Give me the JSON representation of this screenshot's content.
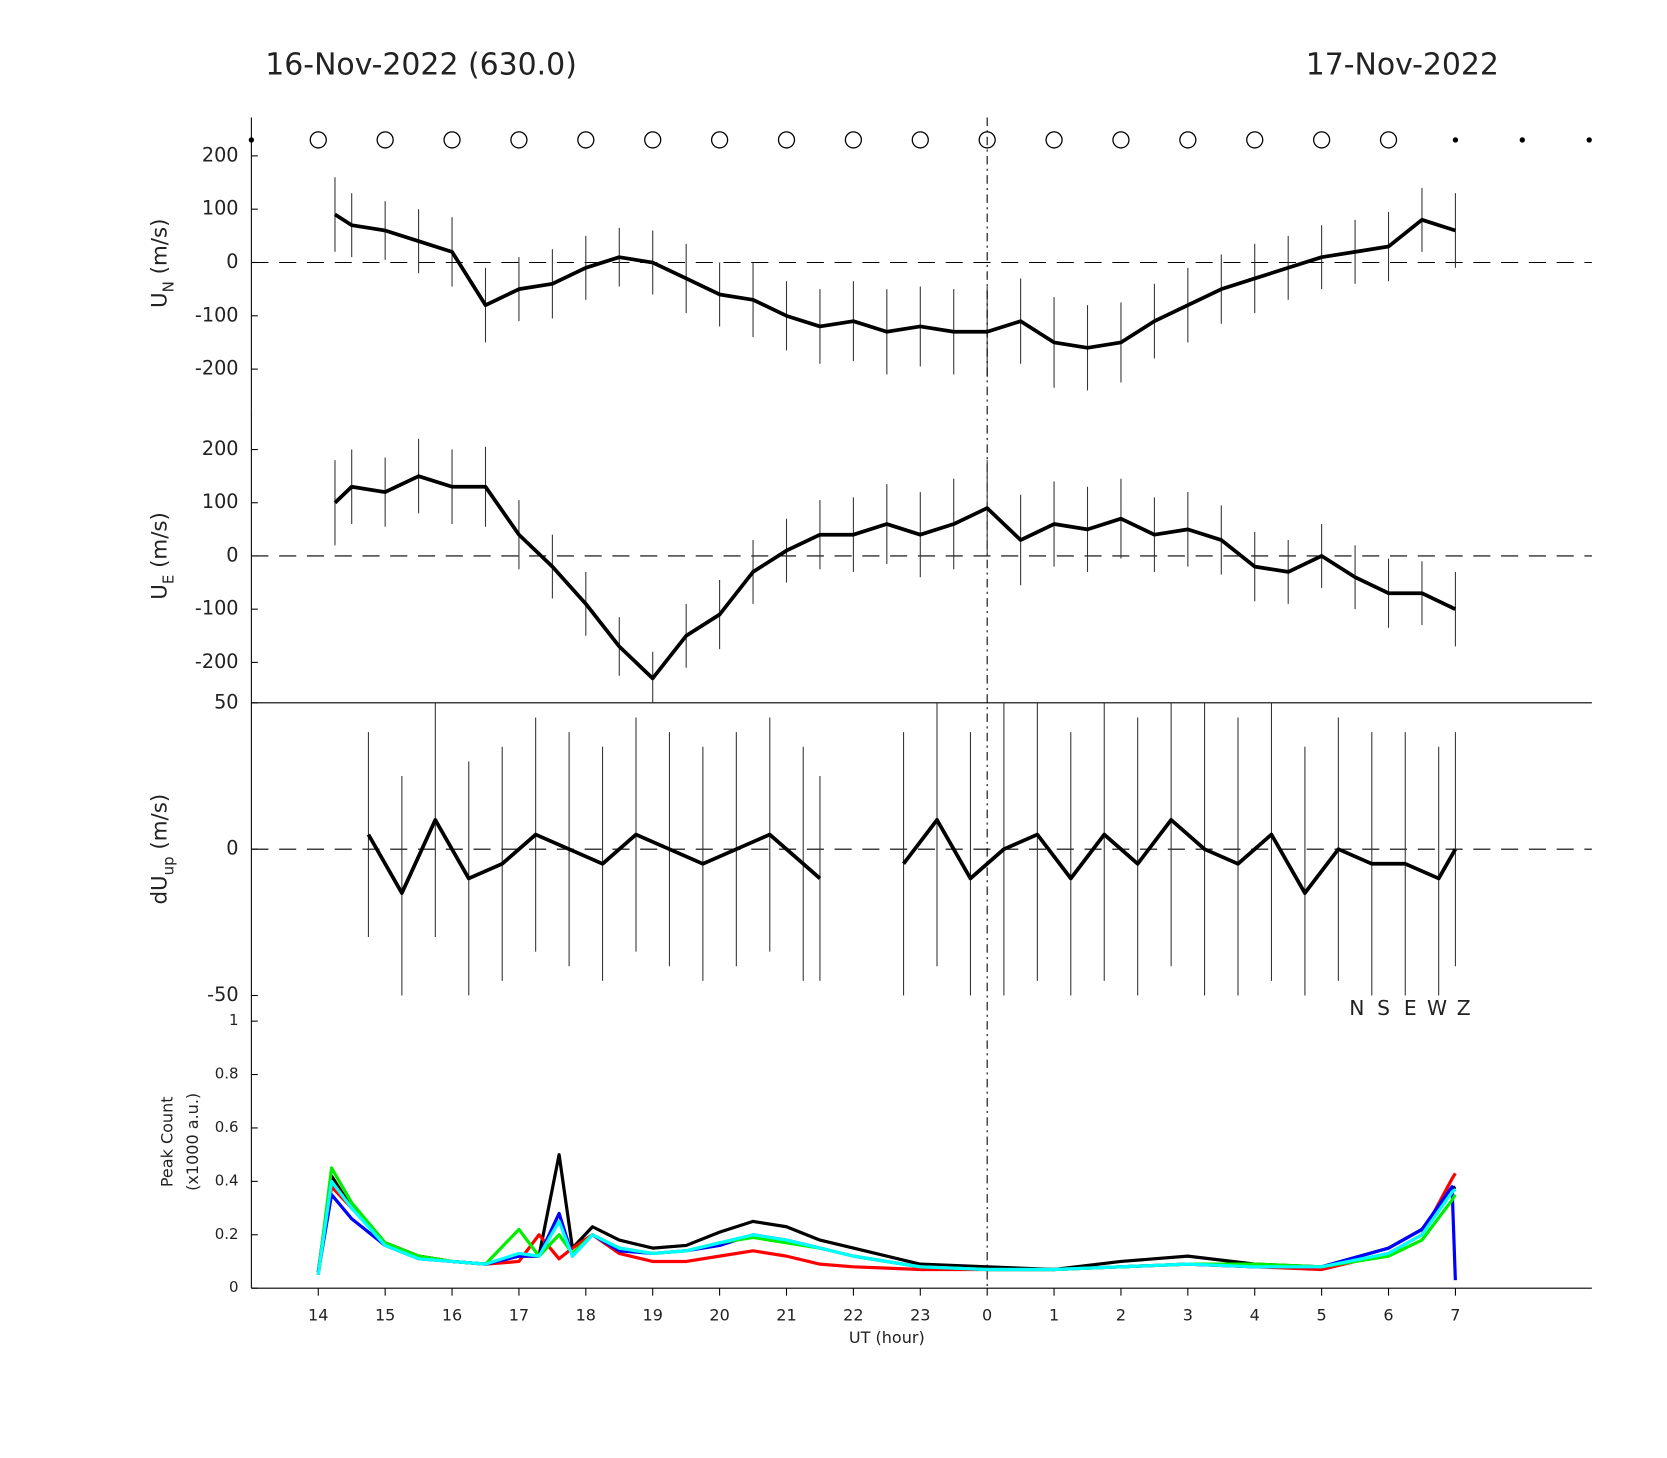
{
  "chart_data": [
    {
      "type": "line",
      "title_left": "16-Nov-2022 (630.0)",
      "title_right": "17-Nov-2022",
      "ylabel": {
        "main": "U",
        "sub": "N",
        "unit": "(m/s)"
      },
      "markers": {
        "x": [
          13,
          14,
          15,
          16,
          17,
          18,
          19,
          20,
          21,
          22,
          23,
          24,
          25,
          26,
          27,
          28,
          29,
          30,
          31,
          32,
          33
        ],
        "symbols": [
          "dot",
          "circle",
          "circle",
          "circle",
          "circle",
          "circle",
          "circle",
          "circle",
          "circle",
          "circle",
          "circle",
          "circle",
          "circle",
          "circle",
          "circle",
          "circle",
          "circle",
          "circle",
          "dot",
          "dot",
          "dot"
        ]
      },
      "midnight_line": 24,
      "xlim": [
        13,
        33.04
      ],
      "ylim": [
        -275,
        272
      ],
      "yticks": [
        -200,
        -100,
        0,
        100,
        200
      ],
      "ref_line": 0,
      "x": [
        14.25,
        14.5,
        15,
        15.5,
        16,
        16.5,
        17,
        17.5,
        18,
        18.5,
        19,
        19.5,
        20,
        20.5,
        21,
        21.5,
        22,
        22.5,
        23,
        23.5,
        24,
        24.5,
        25,
        25.5,
        26,
        26.5,
        27,
        27.5,
        28,
        28.5,
        29,
        29.5,
        30,
        30.5,
        31
      ],
      "series": [
        {
          "color": "#000000",
          "values": [
            90,
            70,
            60,
            40,
            20,
            -80,
            -50,
            -40,
            -10,
            10,
            0,
            -30,
            -60,
            -70,
            -100,
            -120,
            -110,
            -130,
            -120,
            -130,
            -130,
            -110,
            -150,
            -160,
            -150,
            -110,
            -80,
            -50,
            -30,
            -10,
            10,
            20,
            30,
            80,
            60
          ],
          "errors": [
            70,
            60,
            55,
            60,
            65,
            70,
            60,
            65,
            60,
            55,
            60,
            65,
            60,
            70,
            65,
            70,
            75,
            80,
            75,
            80,
            85,
            80,
            85,
            80,
            75,
            70,
            70,
            65,
            65,
            60,
            60,
            60,
            65,
            60,
            70
          ]
        }
      ]
    },
    {
      "type": "line",
      "ylabel": {
        "main": "U",
        "sub": "E",
        "unit": "(m/s)"
      },
      "xlim": [
        13,
        33.04
      ],
      "ylim": [
        -276,
        276
      ],
      "yticks": [
        -200,
        -100,
        0,
        100,
        200
      ],
      "ref_line": 0,
      "x": [
        14.25,
        14.5,
        15,
        15.5,
        16,
        16.5,
        17,
        17.5,
        18,
        18.5,
        19,
        19.5,
        20,
        20.5,
        21,
        21.5,
        22,
        22.5,
        23,
        23.5,
        24,
        24.5,
        25,
        25.5,
        26,
        26.5,
        27,
        27.5,
        28,
        28.5,
        29,
        29.5,
        30,
        30.5,
        31
      ],
      "series": [
        {
          "color": "#000000",
          "values": [
            100,
            130,
            120,
            150,
            130,
            130,
            40,
            -20,
            -90,
            -170,
            -230,
            -150,
            -110,
            -30,
            10,
            40,
            40,
            60,
            40,
            60,
            90,
            30,
            60,
            50,
            70,
            40,
            50,
            30,
            -20,
            -30,
            0,
            -40,
            -70,
            -70,
            -100
          ],
          "errors": [
            80,
            70,
            65,
            70,
            70,
            75,
            65,
            60,
            60,
            55,
            50,
            60,
            65,
            60,
            60,
            65,
            70,
            75,
            80,
            85,
            90,
            85,
            80,
            80,
            75,
            70,
            70,
            65,
            65,
            60,
            60,
            60,
            65,
            60,
            70
          ]
        }
      ]
    },
    {
      "type": "line",
      "ylabel": {
        "main": "dU",
        "sub": "up",
        "unit": "(m/s)"
      },
      "xlim": [
        13,
        33.04
      ],
      "ylim": [
        -50,
        50
      ],
      "yticks": [
        -50,
        0,
        50
      ],
      "ref_line": 0,
      "x": [
        14.75,
        15.25,
        15.75,
        16.25,
        16.75,
        17.25,
        17.75,
        18.25,
        18.75,
        19.25,
        19.75,
        20.25,
        20.75,
        21.25,
        21.5,
        22,
        22.75,
        23.25,
        23.75,
        24.25,
        24.75,
        25.25,
        25.75,
        26.25,
        26.75,
        27.25,
        27.75,
        28.25,
        28.75,
        29.25,
        29.75,
        30.25,
        30.75,
        31
      ],
      "series": [
        {
          "color": "#000000",
          "values": [
            5,
            -15,
            10,
            -10,
            -5,
            5,
            0,
            -5,
            5,
            0,
            -5,
            0,
            5,
            -5,
            -10,
            null,
            -5,
            10,
            -10,
            0,
            5,
            -10,
            5,
            -5,
            10,
            0,
            -5,
            5,
            -15,
            0,
            -5,
            -5,
            -10,
            0
          ],
          "errors": [
            35,
            40,
            40,
            40,
            40,
            40,
            40,
            40,
            40,
            40,
            40,
            40,
            40,
            40,
            35,
            null,
            45,
            50,
            50,
            50,
            50,
            50,
            50,
            50,
            50,
            50,
            50,
            50,
            50,
            45,
            45,
            45,
            45,
            40
          ]
        }
      ]
    },
    {
      "type": "line",
      "ylabel": [
        "Peak Count",
        "(x1000 a.u.)"
      ],
      "xlabel": "UT (hour)",
      "xlim": [
        13,
        33.04
      ],
      "ylim": [
        0,
        1.096
      ],
      "yticks": [
        0,
        0.2,
        0.4,
        0.6,
        0.8,
        1
      ],
      "xticks": [
        14,
        15,
        16,
        17,
        18,
        19,
        20,
        21,
        22,
        23,
        {
          "value": 24,
          "label": "0"
        },
        {
          "value": 25,
          "label": "1"
        },
        {
          "value": 26,
          "label": "2"
        },
        {
          "value": 27,
          "label": "3"
        },
        {
          "value": 28,
          "label": "4"
        },
        {
          "value": 29,
          "label": "5"
        },
        {
          "value": 30,
          "label": "6"
        },
        {
          "value": 31,
          "label": "7"
        }
      ],
      "x": [
        14,
        14.2,
        14.5,
        15,
        15.5,
        16,
        16.5,
        17,
        17.3,
        17.6,
        17.8,
        18.1,
        18.5,
        19,
        19.5,
        20,
        20.5,
        21,
        21.5,
        22,
        23,
        24,
        25,
        26,
        27,
        28,
        29,
        30,
        30.5,
        30.95,
        31
      ],
      "series": [
        {
          "name": "N",
          "color": "#000000",
          "values": [
            0.06,
            0.42,
            0.3,
            0.17,
            0.12,
            0.1,
            0.09,
            0.12,
            0.12,
            0.5,
            0.15,
            0.23,
            0.18,
            0.15,
            0.16,
            0.21,
            0.25,
            0.23,
            0.18,
            0.15,
            0.09,
            0.08,
            0.07,
            0.1,
            0.12,
            0.09,
            0.08,
            0.15,
            0.22,
            0.37,
            0.38
          ]
        },
        {
          "name": "S",
          "color": "#ff0000",
          "values": [
            0.05,
            0.38,
            0.3,
            0.17,
            0.12,
            0.1,
            0.09,
            0.1,
            0.2,
            0.11,
            0.15,
            0.2,
            0.13,
            0.1,
            0.1,
            0.12,
            0.14,
            0.12,
            0.09,
            0.08,
            0.07,
            0.07,
            0.07,
            0.08,
            0.09,
            0.08,
            0.07,
            0.13,
            0.2,
            0.41,
            0.43
          ]
        },
        {
          "name": "E",
          "color": "#0000ff",
          "values": [
            0.06,
            0.35,
            0.26,
            0.16,
            0.11,
            0.1,
            0.09,
            0.12,
            0.12,
            0.28,
            0.12,
            0.2,
            0.14,
            0.13,
            0.14,
            0.16,
            0.2,
            0.18,
            0.15,
            0.12,
            0.08,
            0.07,
            0.07,
            0.08,
            0.09,
            0.08,
            0.08,
            0.15,
            0.22,
            0.38,
            0.03
          ]
        },
        {
          "name": "W",
          "color": "#00ee00",
          "values": [
            0.05,
            0.45,
            0.32,
            0.17,
            0.12,
            0.1,
            0.09,
            0.22,
            0.12,
            0.2,
            0.13,
            0.2,
            0.15,
            0.13,
            0.14,
            0.17,
            0.19,
            0.17,
            0.15,
            0.12,
            0.08,
            0.07,
            0.07,
            0.08,
            0.09,
            0.09,
            0.08,
            0.12,
            0.18,
            0.33,
            0.35
          ]
        },
        {
          "name": "Z",
          "color": "#00ffff",
          "values": [
            0.05,
            0.4,
            0.3,
            0.16,
            0.11,
            0.1,
            0.09,
            0.13,
            0.12,
            0.25,
            0.12,
            0.2,
            0.15,
            0.13,
            0.14,
            0.17,
            0.2,
            0.18,
            0.15,
            0.12,
            0.08,
            0.07,
            0.07,
            0.08,
            0.09,
            0.08,
            0.08,
            0.13,
            0.2,
            0.36,
            0.37
          ]
        }
      ]
    }
  ]
}
